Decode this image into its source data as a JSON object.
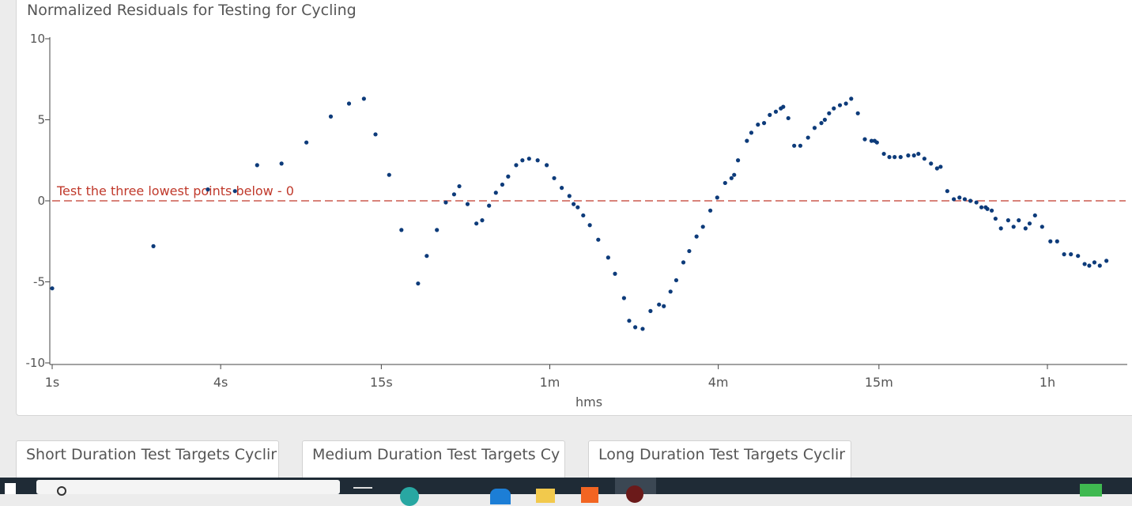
{
  "chart_title": "Normalized Residuals for Testing for Cycling",
  "tabs": [
    "Short Duration Test Targets Cyclir",
    "Medium Duration Test Targets Cy",
    "Long Duration Test Targets Cyclir"
  ],
  "colors": {
    "points": "#0d3b7a",
    "reference_line": "#c0392b",
    "axis": "#444444"
  },
  "icons": [
    "windows-start-icon",
    "search-icon",
    "task-view-icon",
    "edge-icon",
    "store-icon",
    "file-explorer-icon",
    "app-icon",
    "tray-icon"
  ],
  "chart_data": {
    "type": "scatter",
    "title": "Normalized Residuals for Testing for Cycling",
    "xlabel": "hms",
    "ylabel": "",
    "x_scale": "log",
    "x_unit": "seconds",
    "xlim": [
      1,
      6000
    ],
    "ylim": [
      -10,
      10
    ],
    "x_ticks": [
      {
        "value": 1,
        "label": "1s"
      },
      {
        "value": 4,
        "label": "4s"
      },
      {
        "value": 15,
        "label": "15s"
      },
      {
        "value": 60,
        "label": "1m"
      },
      {
        "value": 240,
        "label": "4m"
      },
      {
        "value": 900,
        "label": "15m"
      },
      {
        "value": 3600,
        "label": "1h"
      }
    ],
    "y_ticks": [
      {
        "value": 10,
        "label": "10"
      },
      {
        "value": 5,
        "label": "5"
      },
      {
        "value": 0,
        "label": "0"
      },
      {
        "value": -5,
        "label": "-5"
      },
      {
        "value": -10,
        "label": "-10"
      }
    ],
    "reference_line": {
      "y": 0,
      "label": "Test the three lowest points below - 0",
      "style": "dashed"
    },
    "legend": "none",
    "grid": false,
    "points": [
      [
        1,
        -5.4
      ],
      [
        2.3,
        -2.8
      ],
      [
        3.6,
        0.7
      ],
      [
        4.5,
        0.6
      ],
      [
        5.4,
        2.2
      ],
      [
        6.6,
        2.3
      ],
      [
        8.1,
        3.6
      ],
      [
        9.9,
        5.2
      ],
      [
        11.5,
        6.0
      ],
      [
        13.0,
        6.3
      ],
      [
        14.3,
        4.1
      ],
      [
        16.0,
        1.6
      ],
      [
        17.7,
        -1.8
      ],
      [
        20.3,
        -5.1
      ],
      [
        21.8,
        -3.4
      ],
      [
        23.7,
        -1.8
      ],
      [
        25.5,
        -0.1
      ],
      [
        27.3,
        0.4
      ],
      [
        28.5,
        0.9
      ],
      [
        30.5,
        -0.2
      ],
      [
        32.8,
        -1.4
      ],
      [
        34.4,
        -1.2
      ],
      [
        36.4,
        -0.3
      ],
      [
        38.5,
        0.5
      ],
      [
        40.6,
        1.0
      ],
      [
        42.6,
        1.5
      ],
      [
        45.5,
        2.2
      ],
      [
        47.9,
        2.5
      ],
      [
        50.6,
        2.6
      ],
      [
        54.3,
        2.5
      ],
      [
        58.5,
        2.2
      ],
      [
        62.2,
        1.4
      ],
      [
        66.2,
        0.8
      ],
      [
        70.5,
        0.3
      ],
      [
        73.0,
        -0.2
      ],
      [
        75.5,
        -0.4
      ],
      [
        79.0,
        -0.9
      ],
      [
        83.4,
        -1.5
      ],
      [
        89.4,
        -2.4
      ],
      [
        97.0,
        -3.5
      ],
      [
        102.6,
        -4.5
      ],
      [
        110.5,
        -6.0
      ],
      [
        115.3,
        -7.4
      ],
      [
        121.2,
        -7.8
      ],
      [
        128.8,
        -7.9
      ],
      [
        137.4,
        -6.8
      ],
      [
        147.4,
        -6.4
      ],
      [
        153.3,
        -6.5
      ],
      [
        162.0,
        -5.6
      ],
      [
        169.8,
        -4.9
      ],
      [
        180.1,
        -3.8
      ],
      [
        189.0,
        -3.1
      ],
      [
        200.7,
        -2.2
      ],
      [
        211.5,
        -1.6
      ],
      [
        224.8,
        -0.6
      ],
      [
        237.9,
        0.2
      ],
      [
        253.9,
        1.1
      ],
      [
        267.5,
        1.4
      ],
      [
        273.5,
        1.6
      ],
      [
        282.3,
        2.5
      ],
      [
        303.7,
        3.7
      ],
      [
        315.0,
        4.2
      ],
      [
        332.6,
        4.7
      ],
      [
        349.8,
        4.8
      ],
      [
        366.6,
        5.3
      ],
      [
        385.4,
        5.5
      ],
      [
        401.5,
        5.7
      ],
      [
        409.5,
        5.8
      ],
      [
        427.0,
        5.1
      ],
      [
        448.2,
        3.4
      ],
      [
        471.4,
        3.4
      ],
      [
        502.3,
        3.9
      ],
      [
        530.1,
        4.5
      ],
      [
        560.5,
        4.8
      ],
      [
        576.6,
        5.0
      ],
      [
        597.3,
        5.4
      ],
      [
        620.9,
        5.7
      ],
      [
        653.0,
        5.9
      ],
      [
        686.2,
        6.0
      ],
      [
        716.4,
        6.3
      ],
      [
        756.7,
        5.4
      ],
      [
        801.4,
        3.8
      ],
      [
        846.8,
        3.7
      ],
      [
        868.7,
        3.7
      ],
      [
        885.3,
        3.6
      ],
      [
        937.4,
        2.9
      ],
      [
        980.7,
        2.7
      ],
      [
        1024.0,
        2.7
      ],
      [
        1075.7,
        2.7
      ],
      [
        1145.3,
        2.8
      ],
      [
        1200.8,
        2.8
      ],
      [
        1245.4,
        2.9
      ],
      [
        1308.4,
        2.6
      ],
      [
        1381.3,
        2.3
      ],
      [
        1451.8,
        2.0
      ],
      [
        1495.0,
        2.1
      ],
      [
        1579.6,
        0.6
      ],
      [
        1666.7,
        0.1
      ],
      [
        1746.0,
        0.2
      ],
      [
        1823.6,
        0.1
      ],
      [
        1910.8,
        0
      ],
      [
        2006.9,
        -0.1
      ],
      [
        2092.0,
        -0.4
      ],
      [
        2166.0,
        -0.4
      ],
      [
        2196.8,
        -0.5
      ],
      [
        2276.9,
        -0.6
      ],
      [
        2348.8,
        -1.1
      ],
      [
        2455.6,
        -1.7
      ],
      [
        2606.9,
        -1.2
      ],
      [
        2725.4,
        -1.6
      ],
      [
        2843.6,
        -1.2
      ],
      [
        3006.7,
        -1.7
      ],
      [
        3109.4,
        -1.4
      ],
      [
        3250.7,
        -0.9
      ],
      [
        3446.9,
        -1.6
      ],
      [
        3689.5,
        -2.5
      ],
      [
        3900.0,
        -2.5
      ],
      [
        4130.0,
        -3.3
      ],
      [
        4367.0,
        -3.3
      ],
      [
        4630.0,
        -3.4
      ],
      [
        4890.0,
        -3.9
      ],
      [
        5080.0,
        -4.0
      ],
      [
        5300.0,
        -3.8
      ],
      [
        5540.0,
        -4.0
      ],
      [
        5850.0,
        -3.7
      ]
    ]
  }
}
